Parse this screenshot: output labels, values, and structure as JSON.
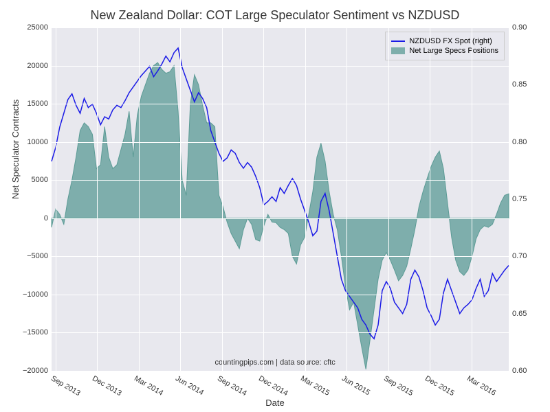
{
  "chart": {
    "type": "line+area",
    "title": "New Zealand Dollar: COT Large Speculator Sentiment vs NZDUSD",
    "title_fontsize": 18,
    "xlabel": "Date",
    "ylabel": "Net Speculator Contracts",
    "label_fontsize": 13,
    "tick_fontsize": 11,
    "background_color": "#ffffff",
    "plot_bg_color": "#e8e8ee",
    "grid_color": "#ffffff",
    "source_text": "countingpips.com | data source: cftc",
    "legend": {
      "position": "top-right",
      "items": [
        {
          "label": "NZDUSD FX Spot (right)",
          "color": "#1a1ae6",
          "type": "line"
        },
        {
          "label": "Net Large Specs Positions",
          "color": "#5b9b95",
          "type": "area"
        }
      ]
    },
    "x_ticks": [
      "Sep 2013",
      "Dec 2013",
      "Mar 2014",
      "Jun 2014",
      "Sep 2014",
      "Dec 2014",
      "Mar 2015",
      "Jun 2015",
      "Sep 2015",
      "Dec 2015",
      "Mar 2016"
    ],
    "y_left": {
      "min": -20000,
      "max": 25000,
      "step": 5000
    },
    "y_right": {
      "min": 0.6,
      "max": 0.9,
      "step": 0.05
    },
    "x_domain": {
      "min": 0,
      "max": 140
    },
    "series_area": {
      "color": "#5b9b95",
      "fill_opacity": 0.75,
      "data": [
        -1200,
        1200,
        500,
        -800,
        2500,
        5000,
        8000,
        11500,
        12500,
        12000,
        11000,
        6500,
        7000,
        12000,
        8000,
        6500,
        7000,
        9000,
        11000,
        14000,
        8000,
        13500,
        16000,
        17500,
        19000,
        20000,
        20400,
        19500,
        19000,
        19200,
        20000,
        14000,
        5000,
        3000,
        15000,
        18800,
        17500,
        14800,
        12500,
        12500,
        12000,
        3000,
        1500,
        -500,
        -2000,
        -3000,
        -4000,
        -1500,
        0,
        -800,
        -2800,
        -3000,
        -1000,
        500,
        -500,
        -600,
        -1200,
        -1500,
        -2000,
        -5000,
        -6000,
        -3500,
        -2500,
        500,
        3500,
        8000,
        9800,
        7500,
        3500,
        500,
        -1500,
        -5000,
        -9000,
        -12000,
        -11000,
        -14000,
        -17000,
        -19800,
        -16000,
        -12000,
        -8000,
        -5500,
        -4500,
        -5500,
        -6800,
        -8200,
        -7500,
        -6300,
        -4000,
        -1500,
        1500,
        3500,
        5200,
        6800,
        8000,
        8800,
        6500,
        2000,
        -2500,
        -5500,
        -7000,
        -7500,
        -6800,
        -5000,
        -2700,
        -1500,
        -1000,
        -1200,
        -800,
        500,
        2000,
        3000,
        3200
      ]
    },
    "series_line": {
      "color": "#1a1ae6",
      "width": 1.5,
      "data": [
        0.783,
        0.795,
        0.813,
        0.825,
        0.837,
        0.842,
        0.832,
        0.825,
        0.838,
        0.83,
        0.833,
        0.825,
        0.815,
        0.822,
        0.82,
        0.828,
        0.832,
        0.83,
        0.836,
        0.843,
        0.848,
        0.853,
        0.858,
        0.862,
        0.866,
        0.857,
        0.862,
        0.868,
        0.875,
        0.87,
        0.878,
        0.882,
        0.865,
        0.855,
        0.845,
        0.835,
        0.843,
        0.838,
        0.83,
        0.81,
        0.8,
        0.79,
        0.783,
        0.786,
        0.793,
        0.79,
        0.782,
        0.777,
        0.782,
        0.778,
        0.77,
        0.76,
        0.745,
        0.748,
        0.752,
        0.748,
        0.76,
        0.755,
        0.762,
        0.768,
        0.762,
        0.75,
        0.74,
        0.73,
        0.718,
        0.722,
        0.748,
        0.755,
        0.74,
        0.72,
        0.7,
        0.68,
        0.67,
        0.665,
        0.66,
        0.655,
        0.645,
        0.64,
        0.632,
        0.628,
        0.64,
        0.67,
        0.678,
        0.672,
        0.66,
        0.655,
        0.65,
        0.658,
        0.68,
        0.688,
        0.682,
        0.67,
        0.655,
        0.648,
        0.64,
        0.645,
        0.668,
        0.68,
        0.67,
        0.66,
        0.65,
        0.655,
        0.658,
        0.662,
        0.672,
        0.68,
        0.665,
        0.67,
        0.685,
        0.678,
        0.683,
        0.688,
        0.692
      ]
    }
  }
}
